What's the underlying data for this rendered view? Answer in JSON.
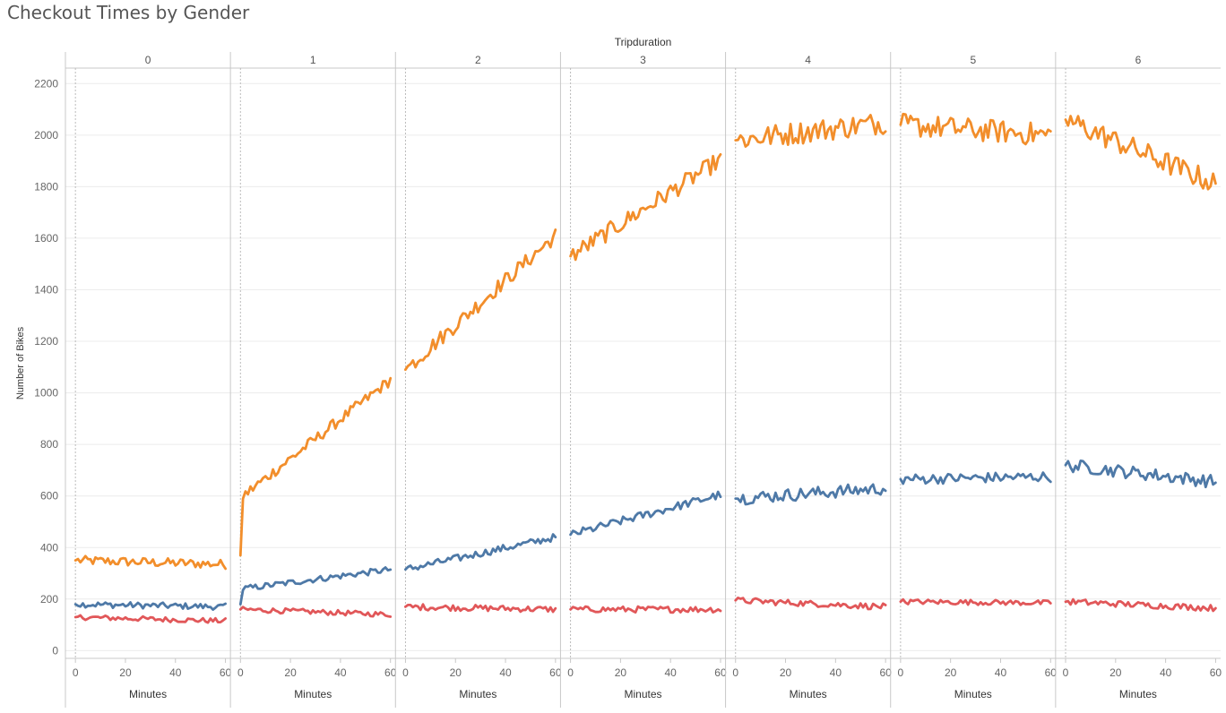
{
  "chart_data": {
    "type": "line",
    "title": "Checkout Times by Gender",
    "column_header": "Tripduration",
    "ylabel": "Number of Bikes",
    "xlabel": "Minutes",
    "ylim": [
      -30,
      2260
    ],
    "y_ticks": [
      0,
      200,
      400,
      600,
      800,
      1000,
      1200,
      1400,
      1600,
      1800,
      2000,
      2200
    ],
    "x_ticks": [
      0,
      20,
      40,
      60
    ],
    "xlim": [
      -4,
      62
    ],
    "grid": true,
    "legend": "none",
    "panels": [
      {
        "label": "0",
        "series": [
          {
            "color": "#f28e2b",
            "start": 350,
            "end": 335,
            "noise": 18
          },
          {
            "color": "#4e79a7",
            "start": 180,
            "end": 170,
            "noise": 12
          },
          {
            "color": "#e15759",
            "start": 130,
            "end": 115,
            "noise": 10
          }
        ]
      },
      {
        "label": "1",
        "series": [
          {
            "color": "#f28e2b",
            "start": 370,
            "jump": 600,
            "end": 1050,
            "noise": 22
          },
          {
            "color": "#4e79a7",
            "start": 180,
            "jump": 240,
            "end": 315,
            "noise": 12
          },
          {
            "color": "#e15759",
            "start": 160,
            "end": 140,
            "noise": 10
          }
        ]
      },
      {
        "label": "2",
        "series": [
          {
            "color": "#f28e2b",
            "start": 1090,
            "end": 1610,
            "noise": 30
          },
          {
            "color": "#4e79a7",
            "start": 315,
            "end": 440,
            "noise": 14
          },
          {
            "color": "#e15759",
            "start": 170,
            "end": 160,
            "noise": 12
          }
        ]
      },
      {
        "label": "3",
        "series": [
          {
            "color": "#f28e2b",
            "start": 1530,
            "end": 1905,
            "noise": 35
          },
          {
            "color": "#4e79a7",
            "start": 450,
            "end": 605,
            "noise": 16
          },
          {
            "color": "#e15759",
            "start": 160,
            "end": 160,
            "noise": 12
          }
        ]
      },
      {
        "label": "4",
        "series": [
          {
            "color": "#f28e2b",
            "start": 1980,
            "end": 2050,
            "noise": 45
          },
          {
            "color": "#4e79a7",
            "start": 590,
            "end": 630,
            "noise": 25
          },
          {
            "color": "#e15759",
            "start": 195,
            "end": 170,
            "noise": 12
          }
        ]
      },
      {
        "label": "5",
        "series": [
          {
            "color": "#f28e2b",
            "start": 2040,
            "end": 2000,
            "noise": 45
          },
          {
            "color": "#4e79a7",
            "start": 665,
            "end": 675,
            "noise": 20
          },
          {
            "color": "#e15759",
            "start": 190,
            "end": 185,
            "noise": 10
          }
        ]
      },
      {
        "label": "6",
        "series": [
          {
            "color": "#f28e2b",
            "start": 2060,
            "end": 1810,
            "noise": 45
          },
          {
            "color": "#4e79a7",
            "start": 720,
            "end": 655,
            "noise": 25
          },
          {
            "color": "#e15759",
            "start": 190,
            "end": 165,
            "noise": 12
          }
        ]
      }
    ]
  }
}
